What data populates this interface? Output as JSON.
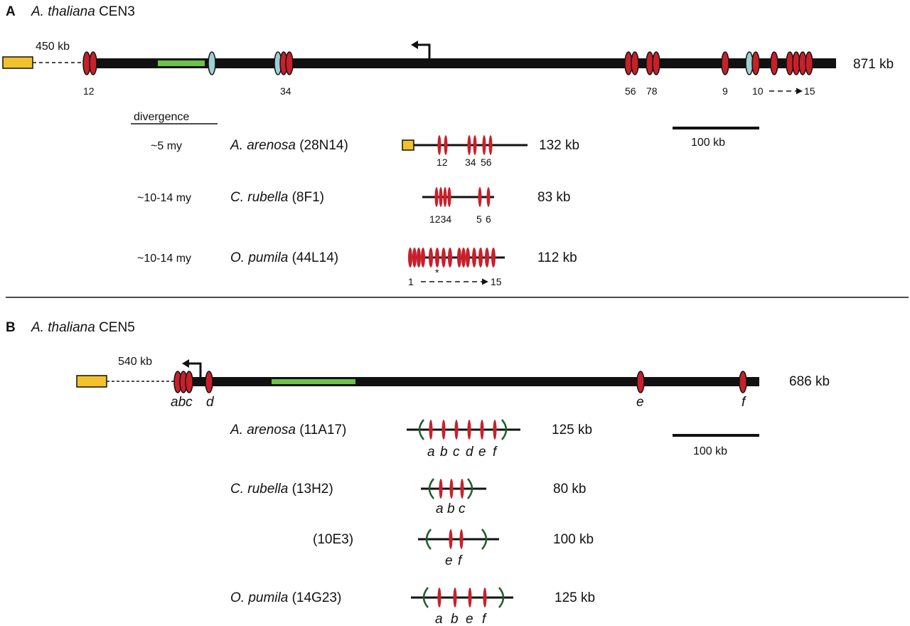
{
  "panelA": {
    "letter": "A",
    "species": "A. thaliana",
    "centromere": "CEN3",
    "gap_label": "450 kb",
    "size_label": "871 kb",
    "marker_labels": [
      "12",
      "34",
      "56",
      "78",
      "9",
      "10",
      "15"
    ],
    "divergence_header": "divergence",
    "scale_label": "100 kb",
    "rows": [
      {
        "divergence": "~5 my",
        "species": "A. arenosa",
        "clone": "(28N14)",
        "size": "132 kb",
        "labels": [
          "12",
          "34",
          "56"
        ]
      },
      {
        "divergence": "~10-14 my",
        "species": "C. rubella",
        "clone": "(8F1)",
        "size": "83 kb",
        "labels": [
          "1234",
          "5",
          "6"
        ]
      },
      {
        "divergence": "~10-14 my",
        "species": "O. pumila",
        "clone": "(44L14)",
        "size": "112 kb",
        "labels": [
          "1",
          "*",
          "15"
        ]
      }
    ]
  },
  "panelB": {
    "letter": "B",
    "species": "A. thaliana",
    "centromere": "CEN5",
    "gap_label": "540 kb",
    "size_label": "686 kb",
    "marker_labels": [
      "abc",
      "d",
      "e",
      "f"
    ],
    "scale_label": "100 kb",
    "rows": [
      {
        "species": "A. arenosa",
        "clone": "(11A17)",
        "size": "125 kb",
        "labels": [
          "a",
          "b",
          "c",
          "d",
          "e",
          "f"
        ]
      },
      {
        "species": "C. rubella",
        "clone": "(13H2)",
        "size": "80 kb",
        "labels": [
          "a",
          "b",
          "c"
        ]
      },
      {
        "species": "",
        "clone": "(10E3)",
        "size": "100 kb",
        "labels": [
          "e",
          "f"
        ]
      },
      {
        "species": "O. pumila",
        "clone": "(14G23)",
        "size": "125 kb",
        "labels": [
          "a",
          "b",
          "e",
          "f"
        ]
      }
    ]
  },
  "colors": {
    "repeat_red": "#c8202b",
    "repeat_blue": "#9fd0d3",
    "green_block": "#6cc24a",
    "yellow_box": "#f2c12e",
    "bracket_green": "#1f5c2e"
  }
}
